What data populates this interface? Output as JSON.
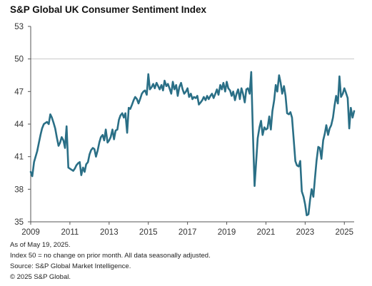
{
  "chart_data": {
    "type": "line",
    "title": "S&P Global UK Consumer Sentiment Index",
    "xlabel": "",
    "ylabel": "",
    "xlim": [
      2009.0,
      2025.5
    ],
    "ylim": [
      35,
      53
    ],
    "y_ticks": [
      35,
      38,
      41,
      44,
      47,
      50,
      53
    ],
    "x_ticks": [
      2009,
      2011,
      2013,
      2015,
      2017,
      2019,
      2021,
      2023,
      2025
    ],
    "reference_line": {
      "y": 50,
      "label": ""
    },
    "colors": {
      "series": "#2a6f86",
      "reference": "#c8c8c8",
      "axis": "#555555"
    },
    "grid": false,
    "series": [
      {
        "name": "",
        "points": [
          [
            2009.0,
            39.6
          ],
          [
            2009.08,
            39.2
          ],
          [
            2009.17,
            40.5
          ],
          [
            2009.25,
            41.0
          ],
          [
            2009.33,
            41.5
          ],
          [
            2009.42,
            42.3
          ],
          [
            2009.5,
            43.0
          ],
          [
            2009.58,
            43.6
          ],
          [
            2009.67,
            44.0
          ],
          [
            2009.75,
            44.1
          ],
          [
            2009.83,
            44.2
          ],
          [
            2009.92,
            44.0
          ],
          [
            2010.0,
            44.9
          ],
          [
            2010.08,
            44.6
          ],
          [
            2010.17,
            44.1
          ],
          [
            2010.25,
            43.6
          ],
          [
            2010.33,
            42.8
          ],
          [
            2010.42,
            42.0
          ],
          [
            2010.5,
            42.3
          ],
          [
            2010.58,
            42.8
          ],
          [
            2010.67,
            42.5
          ],
          [
            2010.75,
            41.8
          ],
          [
            2010.83,
            43.8
          ],
          [
            2010.92,
            40.0
          ],
          [
            2011.0,
            39.9
          ],
          [
            2011.08,
            39.8
          ],
          [
            2011.17,
            39.7
          ],
          [
            2011.25,
            39.9
          ],
          [
            2011.33,
            40.2
          ],
          [
            2011.42,
            40.4
          ],
          [
            2011.5,
            40.5
          ],
          [
            2011.58,
            39.3
          ],
          [
            2011.67,
            40.0
          ],
          [
            2011.75,
            39.6
          ],
          [
            2011.83,
            40.3
          ],
          [
            2011.92,
            40.5
          ],
          [
            2012.0,
            41.2
          ],
          [
            2012.08,
            41.6
          ],
          [
            2012.17,
            41.8
          ],
          [
            2012.25,
            41.7
          ],
          [
            2012.33,
            41.0
          ],
          [
            2012.42,
            41.6
          ],
          [
            2012.5,
            42.3
          ],
          [
            2012.58,
            42.8
          ],
          [
            2012.67,
            43.0
          ],
          [
            2012.75,
            42.5
          ],
          [
            2012.83,
            43.5
          ],
          [
            2012.92,
            42.3
          ],
          [
            2013.0,
            42.5
          ],
          [
            2013.08,
            42.8
          ],
          [
            2013.17,
            43.5
          ],
          [
            2013.25,
            42.6
          ],
          [
            2013.33,
            43.4
          ],
          [
            2013.42,
            43.5
          ],
          [
            2013.5,
            44.4
          ],
          [
            2013.58,
            44.8
          ],
          [
            2013.67,
            45.0
          ],
          [
            2013.75,
            44.6
          ],
          [
            2013.83,
            45.0
          ],
          [
            2013.92,
            43.2
          ],
          [
            2014.0,
            45.5
          ],
          [
            2014.08,
            45.4
          ],
          [
            2014.17,
            45.8
          ],
          [
            2014.25,
            46.2
          ],
          [
            2014.33,
            46.5
          ],
          [
            2014.42,
            46.3
          ],
          [
            2014.5,
            45.9
          ],
          [
            2014.58,
            46.3
          ],
          [
            2014.67,
            46.8
          ],
          [
            2014.75,
            47.0
          ],
          [
            2014.83,
            47.1
          ],
          [
            2014.92,
            46.7
          ],
          [
            2015.0,
            48.6
          ],
          [
            2015.08,
            47.2
          ],
          [
            2015.17,
            47.4
          ],
          [
            2015.25,
            47.7
          ],
          [
            2015.33,
            47.3
          ],
          [
            2015.42,
            47.8
          ],
          [
            2015.5,
            47.5
          ],
          [
            2015.58,
            47.2
          ],
          [
            2015.67,
            47.6
          ],
          [
            2015.75,
            47.1
          ],
          [
            2015.83,
            48.0
          ],
          [
            2015.92,
            47.5
          ],
          [
            2016.0,
            47.7
          ],
          [
            2016.08,
            47.3
          ],
          [
            2016.17,
            46.8
          ],
          [
            2016.25,
            47.9
          ],
          [
            2016.33,
            47.2
          ],
          [
            2016.42,
            47.6
          ],
          [
            2016.5,
            46.6
          ],
          [
            2016.58,
            47.4
          ],
          [
            2016.67,
            47.8
          ],
          [
            2016.75,
            47.2
          ],
          [
            2016.83,
            46.8
          ],
          [
            2016.92,
            47.0
          ],
          [
            2017.0,
            47.3
          ],
          [
            2017.08,
            46.5
          ],
          [
            2017.17,
            46.8
          ],
          [
            2017.25,
            46.3
          ],
          [
            2017.33,
            46.5
          ],
          [
            2017.42,
            46.4
          ],
          [
            2017.5,
            46.6
          ],
          [
            2017.58,
            45.8
          ],
          [
            2017.67,
            46.0
          ],
          [
            2017.75,
            46.2
          ],
          [
            2017.83,
            46.5
          ],
          [
            2017.92,
            46.2
          ],
          [
            2018.0,
            46.6
          ],
          [
            2018.08,
            46.3
          ],
          [
            2018.17,
            46.6
          ],
          [
            2018.25,
            46.8
          ],
          [
            2018.33,
            46.4
          ],
          [
            2018.42,
            46.8
          ],
          [
            2018.5,
            47.2
          ],
          [
            2018.58,
            46.7
          ],
          [
            2018.67,
            47.6
          ],
          [
            2018.75,
            47.2
          ],
          [
            2018.83,
            47.8
          ],
          [
            2018.92,
            47.0
          ],
          [
            2019.0,
            47.9
          ],
          [
            2019.08,
            47.3
          ],
          [
            2019.17,
            47.1
          ],
          [
            2019.25,
            46.6
          ],
          [
            2019.33,
            47.0
          ],
          [
            2019.42,
            46.2
          ],
          [
            2019.5,
            46.8
          ],
          [
            2019.58,
            47.2
          ],
          [
            2019.67,
            46.3
          ],
          [
            2019.75,
            47.3
          ],
          [
            2019.83,
            46.8
          ],
          [
            2019.92,
            46.0
          ],
          [
            2020.0,
            47.2
          ],
          [
            2020.08,
            47.3
          ],
          [
            2020.17,
            46.8
          ],
          [
            2020.25,
            48.8
          ],
          [
            2020.33,
            43.5
          ],
          [
            2020.42,
            38.3
          ],
          [
            2020.5,
            40.5
          ],
          [
            2020.58,
            42.7
          ],
          [
            2020.67,
            43.7
          ],
          [
            2020.75,
            44.3
          ],
          [
            2020.83,
            43.0
          ],
          [
            2020.92,
            43.7
          ],
          [
            2021.0,
            43.5
          ],
          [
            2021.08,
            43.6
          ],
          [
            2021.17,
            44.7
          ],
          [
            2021.25,
            43.5
          ],
          [
            2021.33,
            45.2
          ],
          [
            2021.42,
            46.2
          ],
          [
            2021.5,
            47.6
          ],
          [
            2021.58,
            47.0
          ],
          [
            2021.67,
            48.5
          ],
          [
            2021.75,
            47.8
          ],
          [
            2021.83,
            46.8
          ],
          [
            2021.92,
            47.5
          ],
          [
            2022.0,
            46.6
          ],
          [
            2022.08,
            45.0
          ],
          [
            2022.17,
            44.9
          ],
          [
            2022.25,
            45.1
          ],
          [
            2022.33,
            44.6
          ],
          [
            2022.42,
            42.5
          ],
          [
            2022.5,
            40.6
          ],
          [
            2022.58,
            40.2
          ],
          [
            2022.67,
            40.1
          ],
          [
            2022.75,
            40.6
          ],
          [
            2022.83,
            37.8
          ],
          [
            2022.92,
            37.3
          ],
          [
            2023.0,
            36.6
          ],
          [
            2023.08,
            35.6
          ],
          [
            2023.17,
            35.7
          ],
          [
            2023.25,
            37.0
          ],
          [
            2023.33,
            38.0
          ],
          [
            2023.42,
            37.3
          ],
          [
            2023.5,
            39.0
          ],
          [
            2023.58,
            40.6
          ],
          [
            2023.67,
            41.9
          ],
          [
            2023.75,
            41.8
          ],
          [
            2023.83,
            40.8
          ],
          [
            2023.92,
            42.5
          ],
          [
            2024.0,
            43.1
          ],
          [
            2024.08,
            43.9
          ],
          [
            2024.17,
            43.0
          ],
          [
            2024.25,
            43.6
          ],
          [
            2024.33,
            43.9
          ],
          [
            2024.42,
            44.6
          ],
          [
            2024.5,
            45.7
          ],
          [
            2024.58,
            46.6
          ],
          [
            2024.67,
            45.9
          ],
          [
            2024.75,
            48.4
          ],
          [
            2024.83,
            46.5
          ],
          [
            2024.92,
            46.8
          ],
          [
            2025.0,
            47.3
          ],
          [
            2025.08,
            46.9
          ],
          [
            2025.17,
            46.4
          ],
          [
            2025.25,
            43.6
          ],
          [
            2025.33,
            45.5
          ],
          [
            2025.42,
            44.6
          ],
          [
            2025.5,
            45.2
          ]
        ]
      }
    ]
  },
  "footnotes": {
    "line1": "As of May 19, 2025.",
    "line2": "Index 50 = no change on prior month. All data seasonally adjusted.",
    "line3": "Source: S&P Global Market Intelligence.",
    "line4": "© 2025 S&P Global."
  }
}
